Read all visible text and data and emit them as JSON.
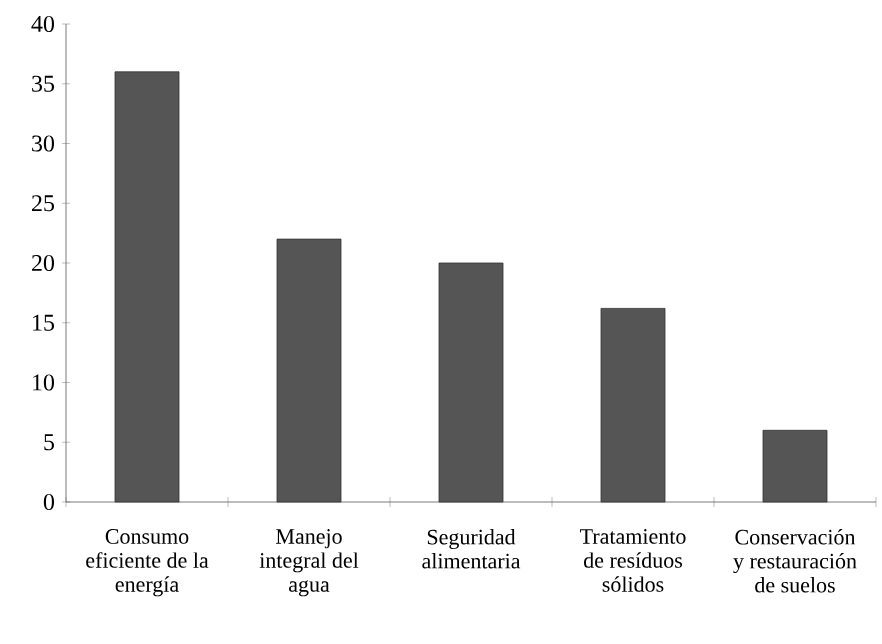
{
  "chart_data": {
    "type": "bar",
    "categories": [
      "Consumo eficiente de la energía",
      "Manejo integral del agua",
      "Seguridad alimentaria",
      "Tratamiento de resíduos sólidos",
      "Conservación y restauración de suelos"
    ],
    "values": [
      36,
      22,
      20,
      16.2,
      6
    ],
    "color": "#555555",
    "ylim": [
      0,
      40
    ],
    "yticks": [
      0,
      5,
      10,
      15,
      20,
      25,
      30,
      35,
      40
    ],
    "grid": false
  }
}
